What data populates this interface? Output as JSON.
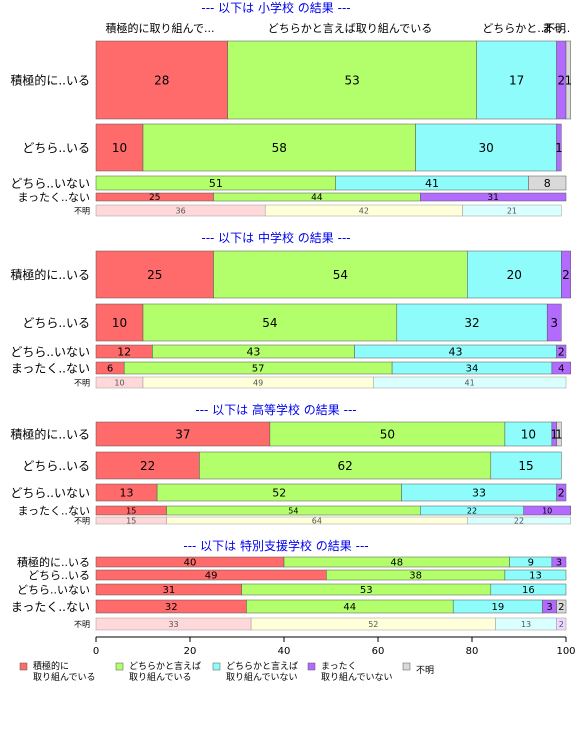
{
  "colors": {
    "c1": "#ff6b6b",
    "c2": "#b3ff6b",
    "c3": "#8ffcfc",
    "c4": "#b36bff",
    "c5": "#d9d9d9",
    "c1_light": "#ffd9d9",
    "c2_light": "#ffffd9",
    "c3_light": "#d9ffff",
    "c4_light": "#ecd9ff",
    "c5_light": "#f0f0f0",
    "title": "#0000ee"
  },
  "chart_data": {
    "type": "bar",
    "orientation": "horizontal",
    "stacked": true,
    "xlim": [
      0,
      100
    ],
    "xticks": [
      0,
      20,
      40,
      60,
      80,
      100
    ],
    "top_labels": [
      "積極的に取り組んで...",
      "どちらかと言えば取り組んでいる",
      "どちらかと...",
      "まっ..",
      "不明"
    ],
    "legend": [
      "積極的に\n取り組んでいる",
      "どちらかと言えば\n取り組んでいる",
      "どちらかと言えば\n取り組んでいない",
      "まったく\n取り組んでいない",
      "不明"
    ],
    "panels": [
      {
        "title": "--- 以下は 小学校 の結果 ---",
        "rows": [
          {
            "label": "積極的に..いる",
            "values": [
              28,
              53,
              17,
              2,
              1
            ]
          },
          {
            "label": "どちら..いる",
            "values": [
              10,
              58,
              30,
              1,
              0
            ]
          },
          {
            "label": "どちら..いない",
            "values": [
              0,
              51,
              41,
              0,
              8
            ]
          },
          {
            "label": "まったく..ない",
            "values": [
              25,
              44,
              0,
              31,
              0
            ]
          },
          {
            "label": "不明",
            "values": [
              36,
              42,
              21,
              0,
              0
            ]
          }
        ]
      },
      {
        "title": "--- 以下は 中学校 の結果 ---",
        "rows": [
          {
            "label": "積極的に..いる",
            "values": [
              25,
              54,
              20,
              2,
              0
            ]
          },
          {
            "label": "どちら..いる",
            "values": [
              10,
              54,
              32,
              3,
              0
            ]
          },
          {
            "label": "どちら..いない",
            "values": [
              12,
              43,
              43,
              2,
              0
            ]
          },
          {
            "label": "まったく..ない",
            "values": [
              6,
              57,
              34,
              4,
              0
            ]
          },
          {
            "label": "不明",
            "values": [
              10,
              49,
              41,
              0,
              0
            ]
          }
        ]
      },
      {
        "title": "--- 以下は 高等学校 の結果 ---",
        "rows": [
          {
            "label": "積極的に..いる",
            "values": [
              37,
              50,
              10,
              1,
              1
            ]
          },
          {
            "label": "どちら..いる",
            "values": [
              22,
              62,
              15,
              0,
              0
            ]
          },
          {
            "label": "どちら..いない",
            "values": [
              13,
              52,
              33,
              2,
              0
            ]
          },
          {
            "label": "まったく..ない",
            "values": [
              15,
              54,
              22,
              10,
              0
            ]
          },
          {
            "label": "不明",
            "values": [
              15,
              64,
              22,
              0,
              0
            ]
          }
        ]
      },
      {
        "title": "--- 以下は 特別支援学校 の結果 ---",
        "rows": [
          {
            "label": "積極的に..いる",
            "values": [
              40,
              48,
              9,
              3,
              0
            ]
          },
          {
            "label": "どちら..いる",
            "values": [
              49,
              38,
              13,
              0,
              0
            ]
          },
          {
            "label": "どちら..いない",
            "values": [
              31,
              53,
              16,
              0,
              0
            ]
          },
          {
            "label": "まったく..ない",
            "values": [
              32,
              44,
              19,
              3,
              2
            ]
          },
          {
            "label": "不明",
            "values": [
              33,
              52,
              13,
              2,
              0
            ]
          }
        ]
      }
    ]
  }
}
